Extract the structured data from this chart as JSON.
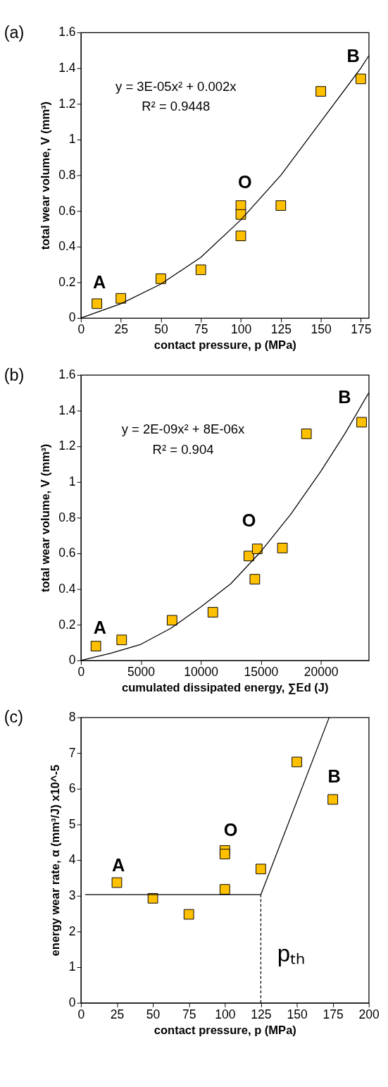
{
  "chart_data": [
    {
      "type": "scatter",
      "title": "(a)",
      "xlabel": "contact pressure, p (MPa)",
      "ylabel": "total wear volume, V (mm³)",
      "xlim": [
        0,
        180
      ],
      "xticks": [
        0,
        25,
        50,
        75,
        100,
        125,
        150,
        175
      ],
      "ylim": [
        0,
        1.6
      ],
      "yticks": [
        0,
        0.2,
        0.4,
        0.6,
        0.8,
        1,
        1.2,
        1.4,
        1.6
      ],
      "grid": false,
      "series": [
        {
          "color": "#ffc000",
          "marker": "square",
          "x": [
            10,
            25,
            50,
            75,
            100,
            100,
            100,
            125,
            150,
            175
          ],
          "values": [
            0.08,
            0.11,
            0.22,
            0.27,
            0.63,
            0.58,
            0.46,
            0.63,
            1.27,
            1.34
          ]
        },
        {
          "type": "line",
          "color": "#000000",
          "marker": "none",
          "line_style": "solid",
          "x": [
            0,
            25,
            50,
            75,
            100,
            125,
            150,
            175,
            180
          ],
          "values": [
            0,
            0.08,
            0.19,
            0.34,
            0.55,
            0.8,
            1.1,
            1.4,
            1.47
          ]
        }
      ],
      "annotations": [
        "y = 3E-05x² + 0.002x",
        "R² = 0.9448",
        "A",
        "O",
        "B"
      ]
    },
    {
      "type": "scatter",
      "title": "(b)",
      "xlabel": "cumulated dissipated energy, ∑Ed (J)",
      "ylabel": "total wear volume, V (mm³)",
      "xlim": [
        0,
        24000
      ],
      "xticks": [
        0,
        5000,
        10000,
        15000,
        20000
      ],
      "ylim": [
        0,
        1.6
      ],
      "yticks": [
        0,
        0.2,
        0.4,
        0.6,
        0.8,
        1,
        1.2,
        1.4,
        1.6
      ],
      "grid": false,
      "series": [
        {
          "color": "#ffc000",
          "marker": "square",
          "x": [
            1250,
            3400,
            7600,
            11000,
            14000,
            14700,
            14500,
            16800,
            18800,
            23400
          ],
          "values": [
            0.08,
            0.115,
            0.225,
            0.27,
            0.585,
            0.625,
            0.455,
            0.63,
            1.27,
            1.335
          ]
        },
        {
          "type": "line",
          "color": "#000000",
          "marker": "none",
          "line_style": "solid",
          "x": [
            0,
            2500,
            5000,
            7500,
            10000,
            12500,
            15000,
            17500,
            20000,
            22000,
            24000
          ],
          "values": [
            0,
            0.04,
            0.09,
            0.18,
            0.3,
            0.43,
            0.61,
            0.82,
            1.06,
            1.27,
            1.5
          ]
        }
      ],
      "annotations": [
        "y = 2E-09x² + 8E-06x",
        "R² = 0.904",
        "A",
        "O",
        "B"
      ]
    },
    {
      "type": "scatter",
      "title": "(c)",
      "xlabel": "contact pressure, p (MPa)",
      "ylabel": "energy wear rate,  α (mm³/J) x10^-5",
      "xlim": [
        0,
        200
      ],
      "xticks": [
        0,
        25,
        50,
        75,
        100,
        125,
        150,
        175,
        200
      ],
      "ylim": [
        0,
        8
      ],
      "yticks": [
        0,
        1,
        2,
        3,
        4,
        5,
        6,
        7,
        8
      ],
      "grid": false,
      "series": [
        {
          "color": "#ffc000",
          "marker": "square",
          "x": [
            25,
            50,
            75,
            100,
            100,
            100,
            125,
            150,
            175
          ],
          "values": [
            3.37,
            2.93,
            2.48,
            4.27,
            4.17,
            3.18,
            3.75,
            6.75,
            5.7
          ]
        },
        {
          "type": "line",
          "color": "#000000",
          "marker": "none",
          "line_style": "solid",
          "x": [
            3,
            125,
            172.5
          ],
          "values": [
            3.03,
            3.03,
            8
          ]
        },
        {
          "type": "line",
          "color": "#000000",
          "marker": "none",
          "line_style": "dashed",
          "x": [
            125,
            125
          ],
          "values": [
            0,
            3.03
          ]
        }
      ],
      "annotations": [
        "A",
        "O",
        "B",
        "pₜₕ"
      ]
    }
  ]
}
